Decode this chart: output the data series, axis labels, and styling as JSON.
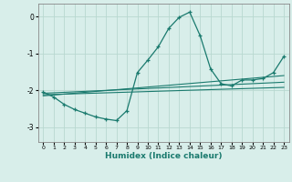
{
  "xlabel": "Humidex (Indice chaleur)",
  "background_color": "#d8eeea",
  "grid_color": "#b8d8d0",
  "line_color": "#1a7a6e",
  "spine_color": "#888888",
  "xlim": [
    -0.5,
    23.5
  ],
  "ylim": [
    -3.4,
    0.35
  ],
  "yticks": [
    0,
    -1,
    -2,
    -3
  ],
  "xticks": [
    0,
    1,
    2,
    3,
    4,
    5,
    6,
    7,
    8,
    9,
    10,
    11,
    12,
    13,
    14,
    15,
    16,
    17,
    18,
    19,
    20,
    21,
    22,
    23
  ],
  "main_x": [
    0,
    1,
    2,
    3,
    4,
    5,
    6,
    7,
    8,
    9,
    10,
    11,
    12,
    13,
    14,
    15,
    16,
    17,
    18,
    19,
    20,
    21,
    22,
    23
  ],
  "main_y": [
    -2.05,
    -2.18,
    -2.38,
    -2.52,
    -2.62,
    -2.72,
    -2.78,
    -2.82,
    -2.55,
    -1.52,
    -1.18,
    -0.82,
    -0.32,
    -0.02,
    0.12,
    -0.52,
    -1.42,
    -1.82,
    -1.88,
    -1.72,
    -1.72,
    -1.68,
    -1.52,
    -1.08
  ],
  "line1_x": [
    0,
    23
  ],
  "line1_y": [
    -2.15,
    -1.6
  ],
  "line2_x": [
    0,
    23
  ],
  "line2_y": [
    -2.08,
    -1.78
  ],
  "line3_x": [
    0,
    23
  ],
  "line3_y": [
    -2.12,
    -1.92
  ]
}
